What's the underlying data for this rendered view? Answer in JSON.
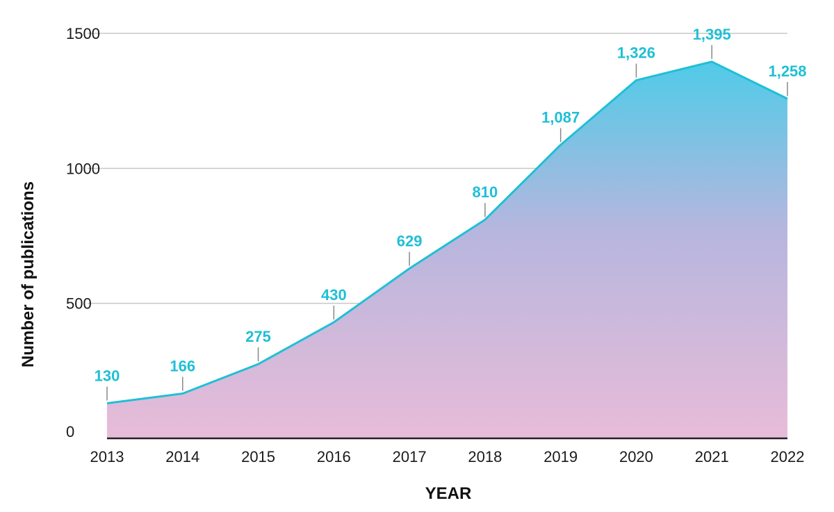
{
  "chart_data": {
    "type": "area",
    "title": "",
    "xlabel": "YEAR",
    "ylabel": "Number of publications",
    "ylim": [
      0,
      1500
    ],
    "y_ticks": [
      "0",
      "500",
      "1000",
      "1500"
    ],
    "grid": "horizontal",
    "categories": [
      "2013",
      "2014",
      "2015",
      "2016",
      "2017",
      "2018",
      "2019",
      "2020",
      "2021",
      "2022"
    ],
    "values": [
      130,
      166,
      275,
      430,
      629,
      810,
      1087,
      1326,
      1395,
      1258
    ],
    "data_labels": [
      "130",
      "166",
      "275",
      "430",
      "629",
      "810",
      "1,087",
      "1,326",
      "1,395",
      "1,258"
    ],
    "colors": {
      "line": "#1fbfd6",
      "label": "#1fbfd6",
      "fill_top": "#4fcbe8",
      "fill_bottom": "#e8bcd8",
      "grid": "#c8c8c8",
      "axis": "#222222"
    }
  }
}
